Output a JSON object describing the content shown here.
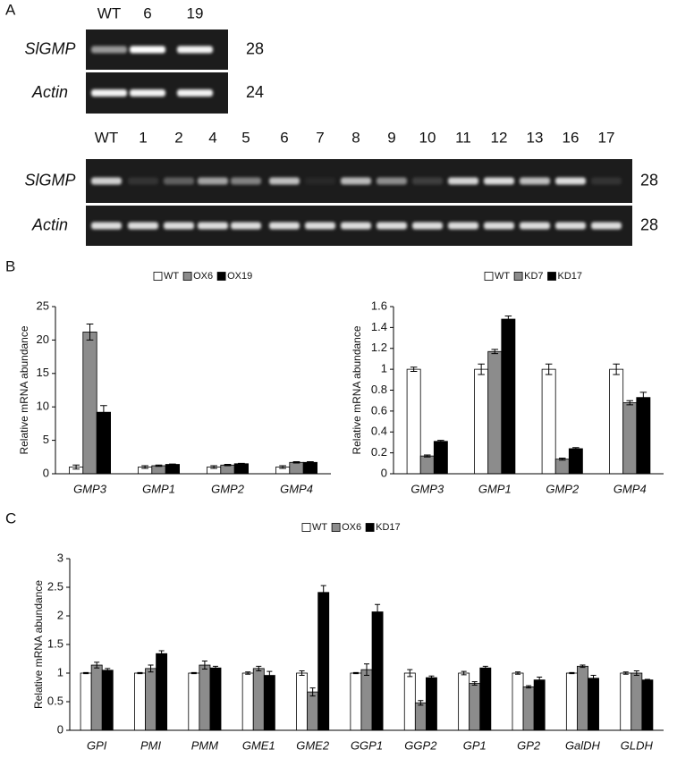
{
  "panels": [
    "A",
    "B",
    "C"
  ],
  "gels": [
    {
      "lanes": [
        "WT",
        "6",
        "19"
      ],
      "rows": [
        {
          "label": "SlGMP",
          "cycles": 28
        },
        {
          "label": "Actin",
          "cycles": 24
        }
      ]
    },
    {
      "lanes": [
        "WT",
        "1",
        "2",
        "4",
        "5",
        "6",
        "7",
        "8",
        "9",
        "10",
        "11",
        "12",
        "13",
        "16",
        "17"
      ],
      "rows": [
        {
          "label": "SlGMP",
          "cycles": 28
        },
        {
          "label": "Actin",
          "cycles": 28
        }
      ]
    }
  ],
  "chart_data": [
    {
      "type": "bar",
      "y_label": "Relative mRNA abundance",
      "categories": [
        "GMP3",
        "GMP1",
        "GMP2",
        "GMP4"
      ],
      "series": [
        {
          "name": "WT",
          "color": "#ffffff",
          "values": [
            1,
            1,
            1,
            1
          ],
          "errors": [
            0.3,
            0.2,
            0.2,
            0.2
          ]
        },
        {
          "name": "OX6",
          "color": "#8c8c8c",
          "values": [
            21.2,
            1.2,
            1.3,
            1.7
          ],
          "errors": [
            1.2,
            0.1,
            0.1,
            0.1
          ]
        },
        {
          "name": "OX19",
          "color": "#000000",
          "values": [
            9.2,
            1.4,
            1.5,
            1.7
          ],
          "errors": [
            1.0,
            0.05,
            0.05,
            0.1
          ]
        }
      ],
      "ylim": [
        0,
        25
      ],
      "yticks": [
        0,
        5,
        10,
        15,
        20,
        25
      ],
      "legend": "top"
    },
    {
      "type": "bar",
      "y_label": "Relative mRNA abundance",
      "categories": [
        "GMP3",
        "GMP1",
        "GMP2",
        "GMP4"
      ],
      "series": [
        {
          "name": "WT",
          "color": "#ffffff",
          "values": [
            1,
            1,
            1,
            1
          ],
          "errors": [
            0.02,
            0.05,
            0.05,
            0.05
          ]
        },
        {
          "name": "KD7",
          "color": "#8c8c8c",
          "values": [
            0.17,
            1.17,
            0.14,
            0.68
          ],
          "errors": [
            0.01,
            0.02,
            0.01,
            0.02
          ]
        },
        {
          "name": "KD17",
          "color": "#000000",
          "values": [
            0.31,
            1.48,
            0.24,
            0.73
          ],
          "errors": [
            0.01,
            0.03,
            0.01,
            0.05
          ]
        }
      ],
      "ylim": [
        0,
        1.6
      ],
      "yticks": [
        0,
        0.2,
        0.4,
        0.6,
        0.8,
        1,
        1.2,
        1.4,
        1.6
      ],
      "legend": "top"
    },
    {
      "type": "bar",
      "y_label": "Relative mRNA abundance",
      "categories": [
        "GPI",
        "PMI",
        "PMM",
        "GME1",
        "GME2",
        "GGP1",
        "GGP2",
        "GP1",
        "GP2",
        "GalDH",
        "GLDH"
      ],
      "series": [
        {
          "name": "WT",
          "color": "#ffffff",
          "values": [
            1,
            1,
            1,
            1,
            1,
            1,
            1,
            1,
            1,
            1,
            1
          ],
          "errors": [
            0.01,
            0.01,
            0.01,
            0.02,
            0.04,
            0.01,
            0.06,
            0.03,
            0.02,
            0.01,
            0.02
          ]
        },
        {
          "name": "OX6",
          "color": "#8c8c8c",
          "values": [
            1.14,
            1.08,
            1.14,
            1.08,
            0.67,
            1.06,
            0.48,
            0.82,
            0.76,
            1.12,
            1.0
          ],
          "errors": [
            0.05,
            0.06,
            0.07,
            0.04,
            0.07,
            0.1,
            0.04,
            0.03,
            0.02,
            0.02,
            0.04
          ]
        },
        {
          "name": "KD17",
          "color": "#000000",
          "values": [
            1.05,
            1.34,
            1.09,
            0.96,
            2.41,
            2.07,
            0.92,
            1.09,
            0.88,
            0.91,
            0.88
          ],
          "errors": [
            0.03,
            0.05,
            0.03,
            0.07,
            0.12,
            0.13,
            0.03,
            0.03,
            0.05,
            0.05,
            0.01
          ]
        }
      ],
      "ylim": [
        0,
        3
      ],
      "yticks": [
        0,
        0.5,
        1,
        1.5,
        2,
        2.5,
        3
      ],
      "legend": "top"
    }
  ]
}
